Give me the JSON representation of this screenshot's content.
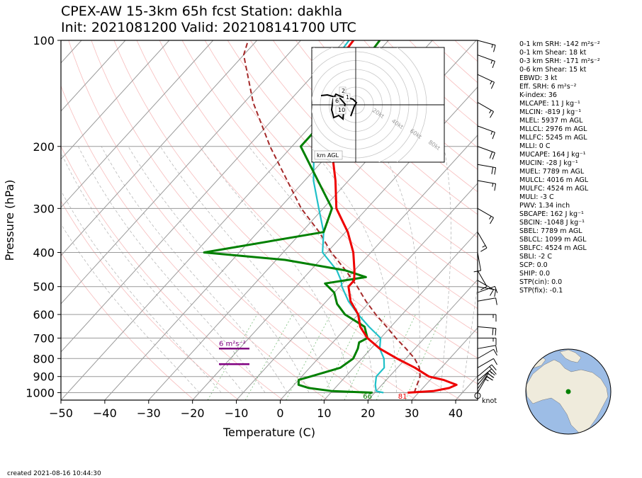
{
  "header": {
    "title_line1": "CPEX-AW 15-3km  65h fcst  Station: dakhla",
    "title_line2": "Init: 2021081200  Valid: 202108141700 UTC"
  },
  "chart_data": {
    "type": "skewt",
    "xlabel": "Temperature (C)",
    "ylabel": "Pressure (hPa)",
    "xlim": [
      -50,
      45
    ],
    "ylim": [
      1050,
      100
    ],
    "x_ticks": [
      -50,
      -40,
      -30,
      -20,
      -10,
      0,
      10,
      20,
      30,
      40
    ],
    "x_tick_labels": [
      "−50",
      "−40",
      "−30",
      "−20",
      "−10",
      "0",
      "10",
      "20",
      "30",
      "40"
    ],
    "p_ticks": [
      100,
      200,
      300,
      400,
      500,
      600,
      700,
      800,
      900,
      1000
    ],
    "p_tick_labels": [
      "100",
      "200",
      "300",
      "400",
      "500",
      "600",
      "700",
      "800",
      "900",
      "1000"
    ],
    "temperature": {
      "color": "#ee0000",
      "points": [
        [
          1000,
          27.5
        ],
        [
          990,
          33
        ],
        [
          970,
          36
        ],
        [
          950,
          37
        ],
        [
          920,
          33
        ],
        [
          900,
          29
        ],
        [
          850,
          24
        ],
        [
          800,
          18
        ],
        [
          750,
          12
        ],
        [
          700,
          7
        ],
        [
          650,
          3
        ],
        [
          600,
          0
        ],
        [
          550,
          -4.5
        ],
        [
          500,
          -8
        ],
        [
          480,
          -8
        ],
        [
          450,
          -10
        ],
        [
          400,
          -14
        ],
        [
          350,
          -19.5
        ],
        [
          300,
          -27
        ],
        [
          250,
          -33
        ],
        [
          200,
          -41
        ],
        [
          150,
          -50
        ],
        [
          120,
          -57
        ],
        [
          100,
          -58
        ]
      ]
    },
    "dewpoint": {
      "color": "#008000",
      "points": [
        [
          1000,
          19.5
        ],
        [
          990,
          10
        ],
        [
          970,
          4
        ],
        [
          950,
          1
        ],
        [
          920,
          0
        ],
        [
          900,
          2
        ],
        [
          850,
          7
        ],
        [
          800,
          8
        ],
        [
          750,
          7
        ],
        [
          720,
          6
        ],
        [
          700,
          7
        ],
        [
          650,
          4
        ],
        [
          600,
          -3
        ],
        [
          560,
          -7
        ],
        [
          520,
          -10
        ],
        [
          490,
          -14
        ],
        [
          470,
          -6
        ],
        [
          450,
          -12
        ],
        [
          420,
          -28
        ],
        [
          400,
          -48
        ],
        [
          350,
          -25
        ],
        [
          300,
          -28
        ],
        [
          250,
          -37
        ],
        [
          200,
          -48
        ],
        [
          170,
          -48
        ],
        [
          150,
          -46
        ],
        [
          130,
          -48
        ],
        [
          120,
          -51
        ],
        [
          100,
          -52
        ]
      ]
    },
    "wetbulb": {
      "color": "#20c0c8",
      "points": [
        [
          1000,
          22
        ],
        [
          990,
          20
        ],
        [
          950,
          18.5
        ],
        [
          900,
          17
        ],
        [
          850,
          17
        ],
        [
          800,
          15
        ],
        [
          750,
          12
        ],
        [
          700,
          10
        ],
        [
          650,
          5
        ],
        [
          600,
          0
        ],
        [
          550,
          -5
        ],
        [
          500,
          -9.5
        ],
        [
          480,
          -11
        ],
        [
          450,
          -14
        ],
        [
          400,
          -21
        ],
        [
          350,
          -25
        ],
        [
          300,
          -31
        ],
        [
          250,
          -38
        ],
        [
          200,
          -45
        ],
        [
          150,
          -53
        ],
        [
          120,
          -58
        ],
        [
          100,
          -59
        ]
      ]
    },
    "parcel": {
      "color": "#a52a2a",
      "style": "dashed",
      "points": [
        [
          1000,
          29
        ],
        [
          950,
          28
        ],
        [
          900,
          27
        ],
        [
          850,
          25
        ],
        [
          800,
          22
        ],
        [
          750,
          18
        ],
        [
          700,
          13.5
        ],
        [
          650,
          9
        ],
        [
          600,
          4
        ],
        [
          550,
          -1
        ],
        [
          500,
          -6
        ],
        [
          450,
          -12
        ],
        [
          400,
          -19
        ],
        [
          350,
          -26
        ],
        [
          300,
          -35
        ],
        [
          250,
          -44
        ],
        [
          200,
          -55
        ],
        [
          150,
          -68
        ],
        [
          110,
          -80
        ],
        [
          100,
          -82
        ]
      ]
    },
    "surface_labels": [
      {
        "text": "66",
        "color": "#008000",
        "temp": 20
      },
      {
        "text": "81",
        "color": "#ee0000",
        "temp": 28
      }
    ],
    "srh_label": "6 m²s⁻²",
    "srh_color": "#800080",
    "wind_unit_label": "knot",
    "hodograph": {
      "ring_labels": [
        "20kt",
        "40kt",
        "60kt",
        "80kt"
      ],
      "height_labels": [
        "2",
        "1",
        "6",
        "10"
      ],
      "legend": "km AGL"
    },
    "winds_kt": [
      {
        "p": 1000,
        "spd": 15,
        "dir": 30
      },
      {
        "p": 975,
        "spd": 20,
        "dir": 35
      },
      {
        "p": 950,
        "spd": 20,
        "dir": 40
      },
      {
        "p": 925,
        "spd": 15,
        "dir": 50
      },
      {
        "p": 900,
        "spd": 15,
        "dir": 50
      },
      {
        "p": 850,
        "spd": 10,
        "dir": 60
      },
      {
        "p": 800,
        "spd": 10,
        "dir": 60
      },
      {
        "p": 750,
        "spd": 10,
        "dir": 80
      },
      {
        "p": 700,
        "spd": 15,
        "dir": 90
      },
      {
        "p": 650,
        "spd": 20,
        "dir": 95
      },
      {
        "p": 600,
        "spd": 15,
        "dir": 90
      },
      {
        "p": 550,
        "spd": 10,
        "dir": 80
      },
      {
        "p": 520,
        "spd": 10,
        "dir": 70
      },
      {
        "p": 500,
        "spd": 10,
        "dir": 100
      },
      {
        "p": 480,
        "spd": 10,
        "dir": 120
      },
      {
        "p": 450,
        "spd": 10,
        "dir": 150
      },
      {
        "p": 400,
        "spd": 10,
        "dir": 170
      },
      {
        "p": 350,
        "spd": 15,
        "dir": 150
      },
      {
        "p": 300,
        "spd": 15,
        "dir": 120
      },
      {
        "p": 250,
        "spd": 15,
        "dir": 100
      },
      {
        "p": 225,
        "spd": 20,
        "dir": 100
      },
      {
        "p": 200,
        "spd": 20,
        "dir": 110
      },
      {
        "p": 175,
        "spd": 15,
        "dir": 110
      },
      {
        "p": 150,
        "spd": 15,
        "dir": 120
      },
      {
        "p": 125,
        "spd": 15,
        "dir": 115
      },
      {
        "p": 110,
        "spd": 15,
        "dir": 110
      },
      {
        "p": 100,
        "spd": 15,
        "dir": 105
      }
    ]
  },
  "indices": [
    {
      "label": "0-1 km SRH: -142 m²s⁻²"
    },
    {
      "label": "0-1 km Shear: 18 kt"
    },
    {
      "label": "0-3 km SRH: -171 m²s⁻²"
    },
    {
      "label": "0-6 km Shear: 15 kt"
    },
    {
      "label": "EBWD: 3 kt"
    },
    {
      "label": "Eff. SRH: 6 m²s⁻²"
    },
    {
      "label": "K-index: 36"
    },
    {
      "label": "MLCAPE: 11 J kg⁻¹"
    },
    {
      "label": "MLCIN: -819 J kg⁻¹"
    },
    {
      "label": "MLEL: 5937 m AGL"
    },
    {
      "label": "MLLCL: 2976 m AGL"
    },
    {
      "label": "MLLFC: 5245 m AGL"
    },
    {
      "label": "MLLI: 0 C"
    },
    {
      "label": "MUCAPE: 164 J kg⁻¹"
    },
    {
      "label": "MUCIN: -28 J kg⁻¹"
    },
    {
      "label": "MUEL: 7789 m AGL"
    },
    {
      "label": "MULCL: 4016 m AGL"
    },
    {
      "label": "MULFC: 4524 m AGL"
    },
    {
      "label": "MULI: -3 C"
    },
    {
      "label": "PWV: 1.34 inch"
    },
    {
      "label": "SBCAPE: 162 J kg⁻¹"
    },
    {
      "label": "SBCIN: -1048 J kg⁻¹"
    },
    {
      "label": "SBEL: 7789 m AGL"
    },
    {
      "label": "SBLCL: 1099 m AGL"
    },
    {
      "label": "SBLFC: 4524 m AGL"
    },
    {
      "label": "SBLI: -2 C"
    },
    {
      "label": "SCP: 0.0"
    },
    {
      "label": "SHIP: 0.0"
    },
    {
      "label": "STP(cin): 0.0"
    },
    {
      "label": "STP(fix): -0.1"
    }
  ],
  "footer": {
    "created": "created 2021-08-16 10:44:30"
  },
  "globe": {
    "ocean_color": "#9dbde6",
    "land_color": "#efebdc",
    "station_color": "#008000"
  }
}
